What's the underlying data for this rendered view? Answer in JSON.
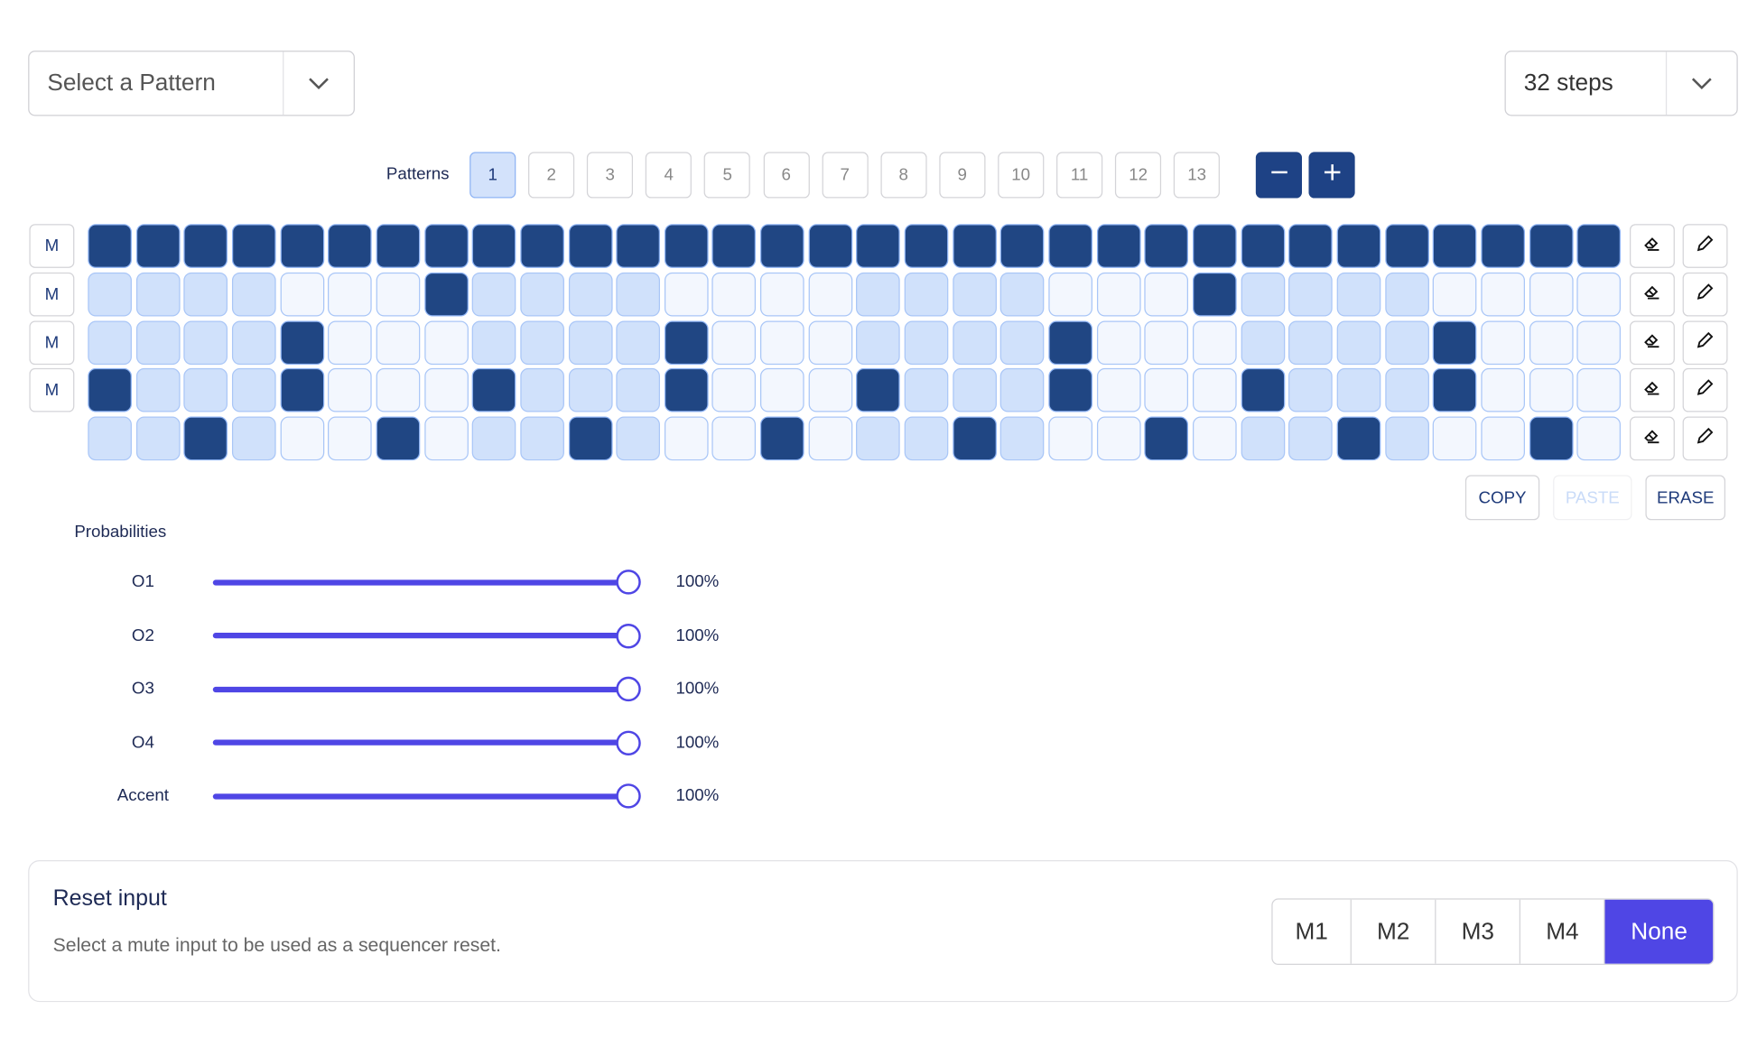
{
  "pattern_select": {
    "placeholder": "Select a Pattern"
  },
  "steps_select": {
    "value": "32 steps"
  },
  "patterns": {
    "label": "Patterns",
    "items": [
      "1",
      "2",
      "3",
      "4",
      "5",
      "6",
      "7",
      "8",
      "9",
      "10",
      "11",
      "12",
      "13"
    ],
    "active": "1",
    "remove_icon": "minus-icon",
    "add_icon": "plus-icon"
  },
  "grid": {
    "steps": 32,
    "mute_label": "M",
    "rows": [
      {
        "mute": true,
        "on": [
          1,
          2,
          3,
          4,
          5,
          6,
          7,
          8,
          9,
          10,
          11,
          12,
          13,
          14,
          15,
          16,
          17,
          18,
          19,
          20,
          21,
          22,
          23,
          24,
          25,
          26,
          27,
          28,
          29,
          30,
          31,
          32
        ]
      },
      {
        "mute": true,
        "on": [
          8,
          24
        ]
      },
      {
        "mute": true,
        "on": [
          5,
          13,
          21,
          29
        ]
      },
      {
        "mute": true,
        "on": [
          1,
          5,
          9,
          13,
          17,
          21,
          25,
          29
        ]
      },
      {
        "mute": false,
        "on": [
          3,
          7,
          11,
          15,
          19,
          23,
          27,
          31
        ]
      }
    ],
    "row_tools": [
      "eraser-icon",
      "pencil-icon"
    ]
  },
  "actions": {
    "copy": "COPY",
    "paste": "PASTE",
    "erase": "ERASE"
  },
  "probabilities": {
    "title": "Probabilities",
    "items": [
      {
        "label": "O1",
        "value": "100%",
        "percent": 100
      },
      {
        "label": "O2",
        "value": "100%",
        "percent": 100
      },
      {
        "label": "O3",
        "value": "100%",
        "percent": 100
      },
      {
        "label": "O4",
        "value": "100%",
        "percent": 100
      },
      {
        "label": "Accent",
        "value": "100%",
        "percent": 100
      }
    ]
  },
  "reset": {
    "title": "Reset input",
    "description": "Select a mute input to be used as a sequencer reset.",
    "options": [
      "M1",
      "M2",
      "M3",
      "M4",
      "None"
    ],
    "selected": "None"
  },
  "colors": {
    "on": "#204683",
    "accent": "#4f46e5"
  }
}
